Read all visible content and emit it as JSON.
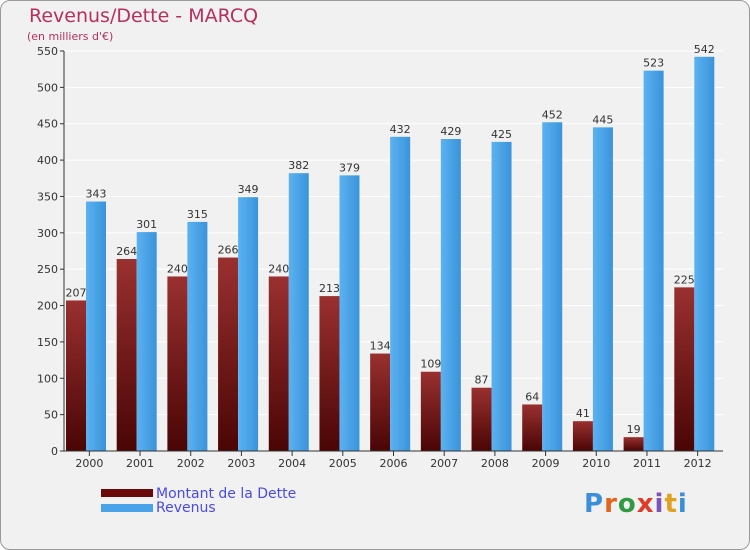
{
  "chart_data": {
    "type": "bar",
    "title": "Revenus/Dette - MARCQ",
    "subtitle": "(en milliers d'€)",
    "categories": [
      "2000",
      "2001",
      "2002",
      "2003",
      "2004",
      "2005",
      "2006",
      "2007",
      "2008",
      "2009",
      "2010",
      "2011",
      "2012"
    ],
    "series": [
      {
        "name": "Montant de la Dette",
        "values": [
          207,
          264,
          240,
          266,
          240,
          213,
          134,
          109,
          87,
          64,
          41,
          19,
          225
        ],
        "color": "#7a1010"
      },
      {
        "name": "Revenus",
        "values": [
          343,
          301,
          315,
          349,
          382,
          379,
          432,
          429,
          425,
          452,
          445,
          523,
          542
        ],
        "color": "#4aa3e8"
      }
    ],
    "ylim": [
      0,
      550
    ],
    "yticks": [
      0,
      50,
      100,
      150,
      200,
      250,
      300,
      350,
      400,
      450,
      500,
      550
    ],
    "grid": true,
    "legend": "bottom-left"
  },
  "legend": {
    "debt_label": "Montant de la Dette",
    "revenue_label": "Revenus"
  },
  "brand": {
    "letters": [
      "P",
      "r",
      "o",
      "x",
      "i",
      "t",
      "i"
    ],
    "colors": [
      "#3a8fd8",
      "#e2661e",
      "#2f9a42",
      "#e03a2a",
      "#7a54b8",
      "#e0a020",
      "#3a8fd8"
    ]
  }
}
